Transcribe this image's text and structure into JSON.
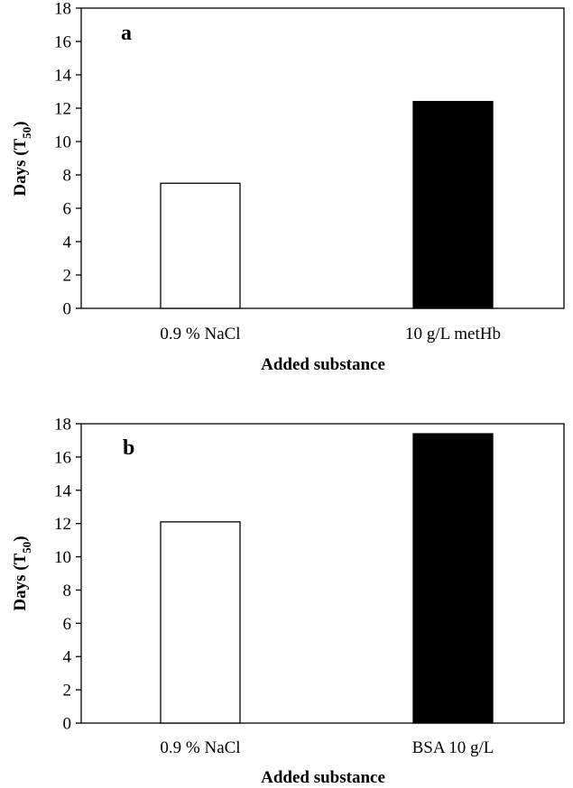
{
  "chart_data": [
    {
      "type": "bar",
      "panel_label": "a",
      "categories": [
        "0.9 % NaCl",
        "10 g/L metHb"
      ],
      "values": [
        7.5,
        12.4
      ],
      "bar_colors": [
        "#ffffff",
        "#000000"
      ],
      "xlabel": "Added substance",
      "ylabel": {
        "main": "Days (T",
        "sub": "50",
        "close": ")"
      },
      "ylim": [
        0,
        18
      ],
      "yticks": [
        0,
        2,
        4,
        6,
        8,
        10,
        12,
        14,
        16,
        18
      ],
      "grid": false,
      "legend": "none"
    },
    {
      "type": "bar",
      "panel_label": "b",
      "categories": [
        "0.9 % NaCl",
        "BSA 10 g/L"
      ],
      "values": [
        12.1,
        17.4
      ],
      "bar_colors": [
        "#ffffff",
        "#000000"
      ],
      "xlabel": "Added substance",
      "ylabel": {
        "main": "Days (T",
        "sub": "50",
        "close": ")"
      },
      "ylim": [
        0,
        18
      ],
      "yticks": [
        0,
        2,
        4,
        6,
        8,
        10,
        12,
        14,
        16,
        18
      ],
      "grid": false,
      "legend": "none"
    }
  ]
}
